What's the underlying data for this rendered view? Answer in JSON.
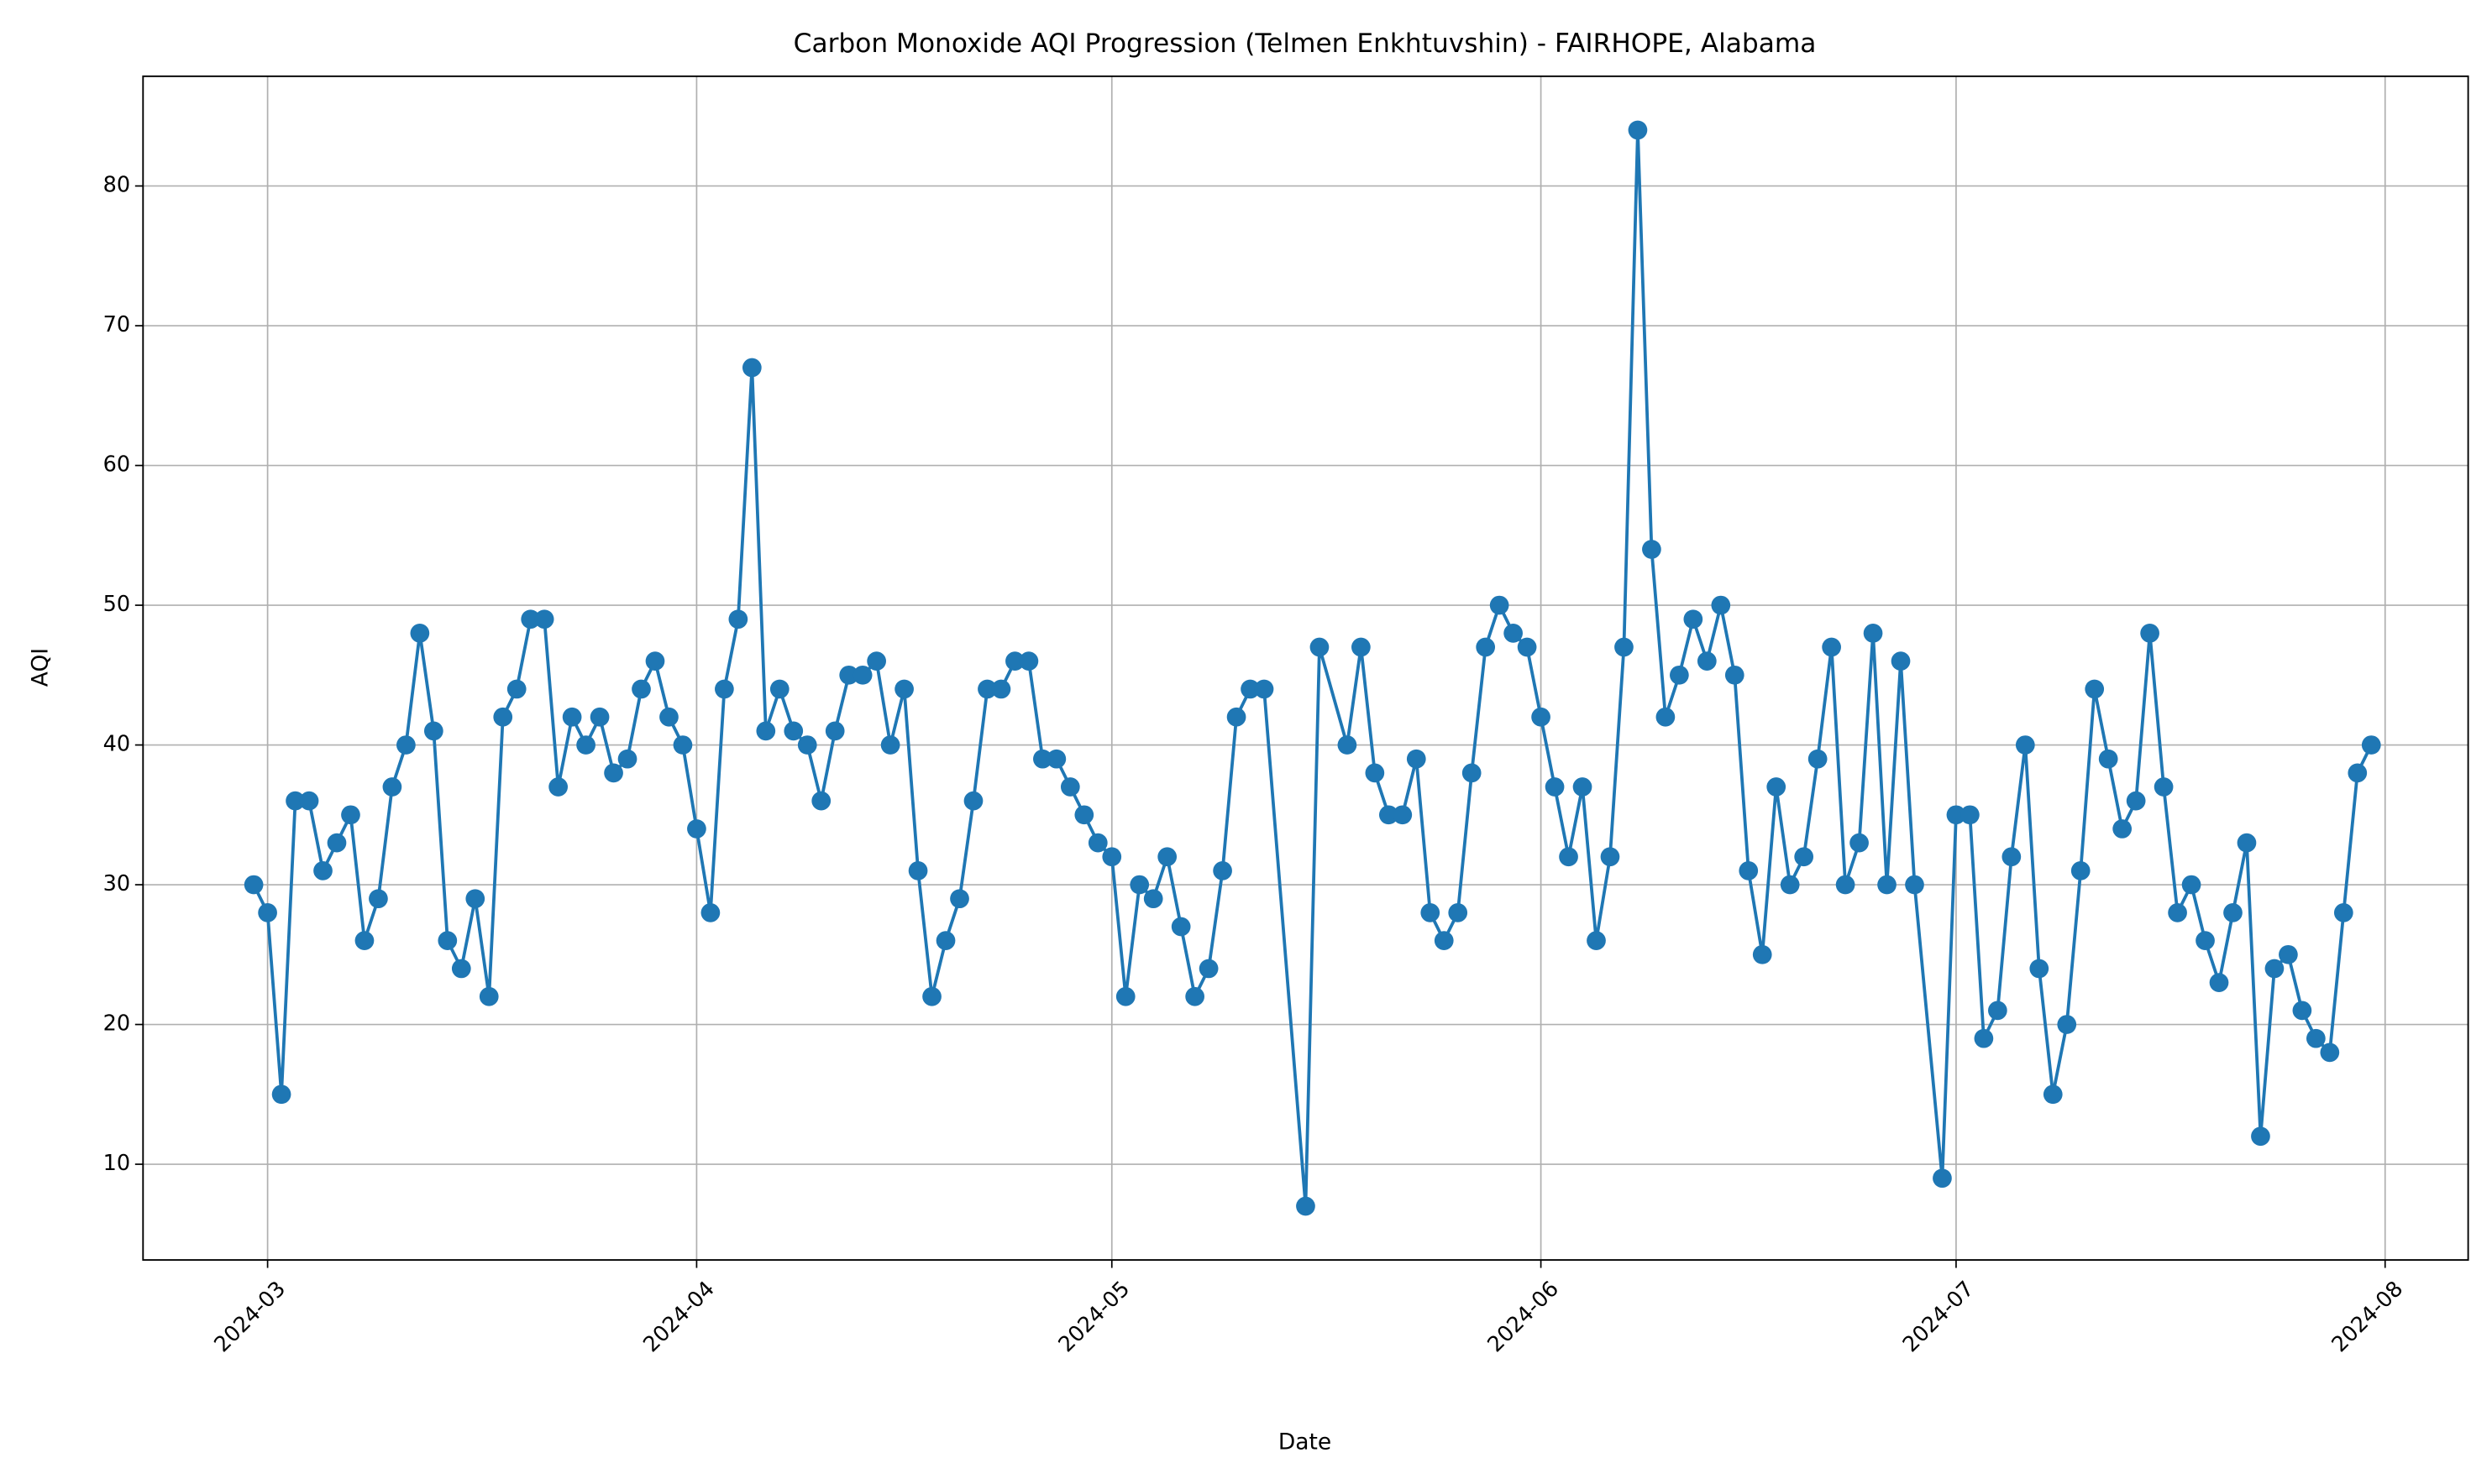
{
  "chart_data": {
    "type": "line",
    "title": "Carbon Monoxide AQI Progression (Telmen Enkhtuvshin) - FAIRHOPE, Alabama",
    "x_label": "Date",
    "y_label": "AQI",
    "x": [
      "2024-02-29",
      "2024-03-01",
      "2024-03-02",
      "2024-03-03",
      "2024-03-04",
      "2024-03-05",
      "2024-03-06",
      "2024-03-07",
      "2024-03-08",
      "2024-03-09",
      "2024-03-10",
      "2024-03-11",
      "2024-03-12",
      "2024-03-13",
      "2024-03-14",
      "2024-03-15",
      "2024-03-16",
      "2024-03-17",
      "2024-03-18",
      "2024-03-19",
      "2024-03-20",
      "2024-03-21",
      "2024-03-22",
      "2024-03-23",
      "2024-03-24",
      "2024-03-25",
      "2024-03-26",
      "2024-03-27",
      "2024-03-28",
      "2024-03-29",
      "2024-03-30",
      "2024-03-31",
      "2024-04-01",
      "2024-04-02",
      "2024-04-03",
      "2024-04-04",
      "2024-04-05",
      "2024-04-06",
      "2024-04-07",
      "2024-04-08",
      "2024-04-09",
      "2024-04-10",
      "2024-04-11",
      "2024-04-12",
      "2024-04-13",
      "2024-04-14",
      "2024-04-15",
      "2024-04-16",
      "2024-04-17",
      "2024-04-18",
      "2024-04-19",
      "2024-04-20",
      "2024-04-21",
      "2024-04-22",
      "2024-04-23",
      "2024-04-24",
      "2024-04-25",
      "2024-04-26",
      "2024-04-27",
      "2024-04-28",
      "2024-04-29",
      "2024-04-30",
      "2024-05-01",
      "2024-05-02",
      "2024-05-03",
      "2024-05-04",
      "2024-05-05",
      "2024-05-06",
      "2024-05-07",
      "2024-05-08",
      "2024-05-09",
      "2024-05-10",
      "2024-05-11",
      "2024-05-12",
      "2024-05-15",
      "2024-05-16",
      "2024-05-18",
      "2024-05-19",
      "2024-05-20",
      "2024-05-21",
      "2024-05-22",
      "2024-05-23",
      "2024-05-24",
      "2024-05-25",
      "2024-05-26",
      "2024-05-27",
      "2024-05-28",
      "2024-05-29",
      "2024-05-30",
      "2024-05-31",
      "2024-06-01",
      "2024-06-02",
      "2024-06-03",
      "2024-06-04",
      "2024-06-05",
      "2024-06-06",
      "2024-06-07",
      "2024-06-08",
      "2024-06-09",
      "2024-06-10",
      "2024-06-11",
      "2024-06-12",
      "2024-06-13",
      "2024-06-14",
      "2024-06-15",
      "2024-06-16",
      "2024-06-17",
      "2024-06-18",
      "2024-06-19",
      "2024-06-20",
      "2024-06-21",
      "2024-06-22",
      "2024-06-23",
      "2024-06-24",
      "2024-06-25",
      "2024-06-26",
      "2024-06-27",
      "2024-06-28",
      "2024-06-30",
      "2024-07-01",
      "2024-07-02",
      "2024-07-03",
      "2024-07-04",
      "2024-07-05",
      "2024-07-06",
      "2024-07-07",
      "2024-07-08",
      "2024-07-09",
      "2024-07-10",
      "2024-07-11",
      "2024-07-12",
      "2024-07-13",
      "2024-07-14",
      "2024-07-15",
      "2024-07-16",
      "2024-07-17",
      "2024-07-18",
      "2024-07-19",
      "2024-07-20",
      "2024-07-21",
      "2024-07-22",
      "2024-07-23",
      "2024-07-24",
      "2024-07-25",
      "2024-07-26",
      "2024-07-27",
      "2024-07-28",
      "2024-07-29",
      "2024-07-30",
      "2024-07-31"
    ],
    "values": [
      30,
      28,
      15,
      36,
      36,
      31,
      33,
      35,
      26,
      29,
      37,
      40,
      48,
      41,
      26,
      24,
      29,
      22,
      42,
      44,
      49,
      49,
      37,
      42,
      40,
      42,
      38,
      39,
      44,
      46,
      42,
      40,
      34,
      28,
      44,
      49,
      67,
      41,
      44,
      41,
      40,
      36,
      41,
      45,
      45,
      46,
      40,
      44,
      31,
      22,
      26,
      29,
      36,
      44,
      44,
      46,
      46,
      39,
      39,
      37,
      35,
      33,
      32,
      22,
      30,
      29,
      32,
      27,
      22,
      24,
      31,
      42,
      44,
      44,
      7,
      47,
      40,
      47,
      38,
      35,
      35,
      39,
      28,
      26,
      28,
      38,
      47,
      50,
      48,
      47,
      42,
      37,
      32,
      37,
      26,
      32,
      47,
      84,
      54,
      42,
      45,
      49,
      46,
      50,
      45,
      31,
      25,
      37,
      30,
      32,
      39,
      47,
      30,
      33,
      48,
      30,
      46,
      30,
      9,
      35,
      35,
      19,
      21,
      32,
      40,
      24,
      15,
      20,
      31,
      44,
      39,
      34,
      36,
      48,
      37,
      28,
      30,
      26,
      23,
      28,
      33,
      12,
      24,
      25,
      21,
      19,
      18,
      28,
      38,
      40
    ],
    "color": "#1f77b4",
    "marker": "circle",
    "xlim": [
      "2024-02-21",
      "2024-08-07"
    ],
    "xticks": [
      {
        "value": "2024-03-01",
        "label": "2024-03"
      },
      {
        "value": "2024-04-01",
        "label": "2024-04"
      },
      {
        "value": "2024-05-01",
        "label": "2024-05"
      },
      {
        "value": "2024-06-01",
        "label": "2024-06"
      },
      {
        "value": "2024-07-01",
        "label": "2024-07"
      },
      {
        "value": "2024-08-01",
        "label": "2024-08"
      }
    ],
    "ylim": [
      3.15,
      87.85
    ],
    "yticks": [
      10,
      20,
      30,
      40,
      50,
      60,
      70,
      80
    ],
    "grid": true
  }
}
